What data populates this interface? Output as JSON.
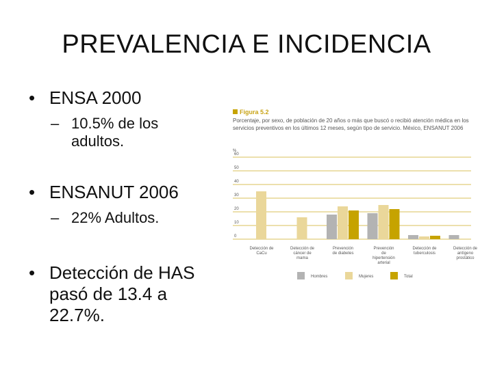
{
  "slide": {
    "title": "PREVALENCIA E INCIDENCIA",
    "bullets": [
      {
        "text": "ENSA 2000",
        "sub": "10.5% de los adultos."
      },
      {
        "text": "ENSANUT 2006",
        "sub": "22% Adultos."
      },
      {
        "text": "Detección de HAS pasó de 13.4 a 22.7%.",
        "sub": ""
      }
    ]
  },
  "chart_data": {
    "type": "bar",
    "figure_label": "Figura 5.2",
    "title_lines": [
      "Porcentaje, por sexo, de población de 20 años o más que buscó o recibió atención médica en los",
      "servicios preventivos en los últimos 12 meses, según tipo de servicio. México, ENSANUT 2006"
    ],
    "ylabel": "%",
    "ylim": [
      0,
      60
    ],
    "yticks": [
      "60",
      "50",
      "40",
      "30",
      "20",
      "10",
      "0"
    ],
    "categories": [
      [
        "Detección de",
        "CaCu"
      ],
      [
        "Detección de",
        "cáncer de",
        "mama"
      ],
      [
        "Prevención",
        "de diabetes"
      ],
      [
        "Prevención",
        "de",
        "hipertensión",
        "arterial"
      ],
      [
        "Detección de",
        "tuberculosis"
      ],
      [
        "Detección de",
        "antígeno",
        "prostático"
      ]
    ],
    "series": [
      {
        "name": "Hombres",
        "color": "#b3b3b3",
        "values": [
          0,
          0,
          18,
          19,
          3,
          3
        ]
      },
      {
        "name": "Mujeres",
        "color": "#ead79a",
        "values": [
          35,
          16,
          24,
          25,
          2,
          0
        ]
      },
      {
        "name": "Total",
        "color": "#c6a300",
        "values": [
          0,
          0,
          21,
          22,
          2.5,
          0
        ]
      }
    ],
    "grid": true,
    "gridColor": "#d9c15a",
    "legend": "bottom"
  }
}
